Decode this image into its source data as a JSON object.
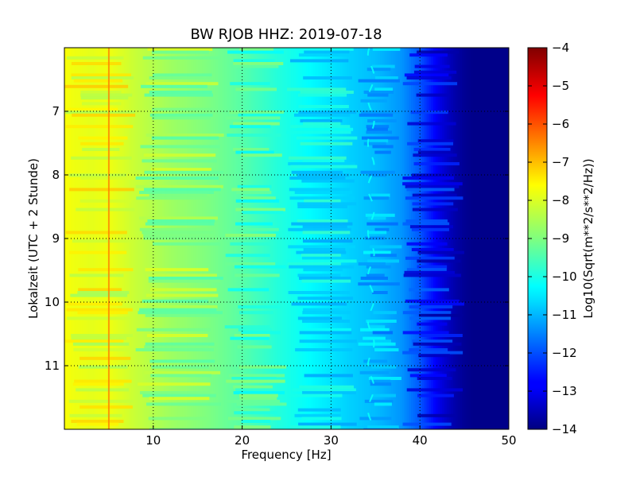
{
  "chart_data": {
    "type": "heatmap",
    "title": "BW RJOB HHZ: 2019-07-18",
    "xlabel": "Frequency [Hz]",
    "ylabel": "Lokalzeit (UTC + 2 Stunde)",
    "xlim": [
      0,
      50
    ],
    "ylim": [
      12,
      6
    ],
    "x_ticks": [
      10,
      20,
      30,
      40,
      50
    ],
    "y_ticks": [
      7,
      8,
      9,
      10,
      11
    ],
    "grid": true,
    "grid_style": "dotted",
    "colormap": "jet",
    "colorbar": {
      "label": "Log10(Sqrt(m**2/s**2/Hz))",
      "range": [
        -14,
        -4
      ],
      "ticks": [
        -4,
        -5,
        -6,
        -7,
        -8,
        -9,
        -10,
        -11,
        -12,
        -13,
        -14
      ]
    },
    "profile": {
      "frequency_hz": [
        0,
        1,
        3,
        5,
        8,
        12,
        16,
        20,
        24,
        28,
        32,
        35,
        38,
        40,
        41,
        42,
        43,
        44,
        45,
        46,
        50
      ],
      "log10_amplitude": [
        -7.8,
        -7.9,
        -8.0,
        -7.9,
        -8.3,
        -8.7,
        -9.0,
        -9.4,
        -9.9,
        -10.3,
        -10.7,
        -10.9,
        -11.3,
        -11.9,
        -12.4,
        -12.9,
        -13.3,
        -13.6,
        -13.8,
        -13.9,
        -13.9
      ]
    },
    "features": [
      {
        "label": "persistent spectral line",
        "frequency_hz": 5,
        "log10_amplitude": -6.5
      },
      {
        "label": "wandering line",
        "frequency_hz": 34.5,
        "log10_amplitude": -10.2
      }
    ]
  }
}
